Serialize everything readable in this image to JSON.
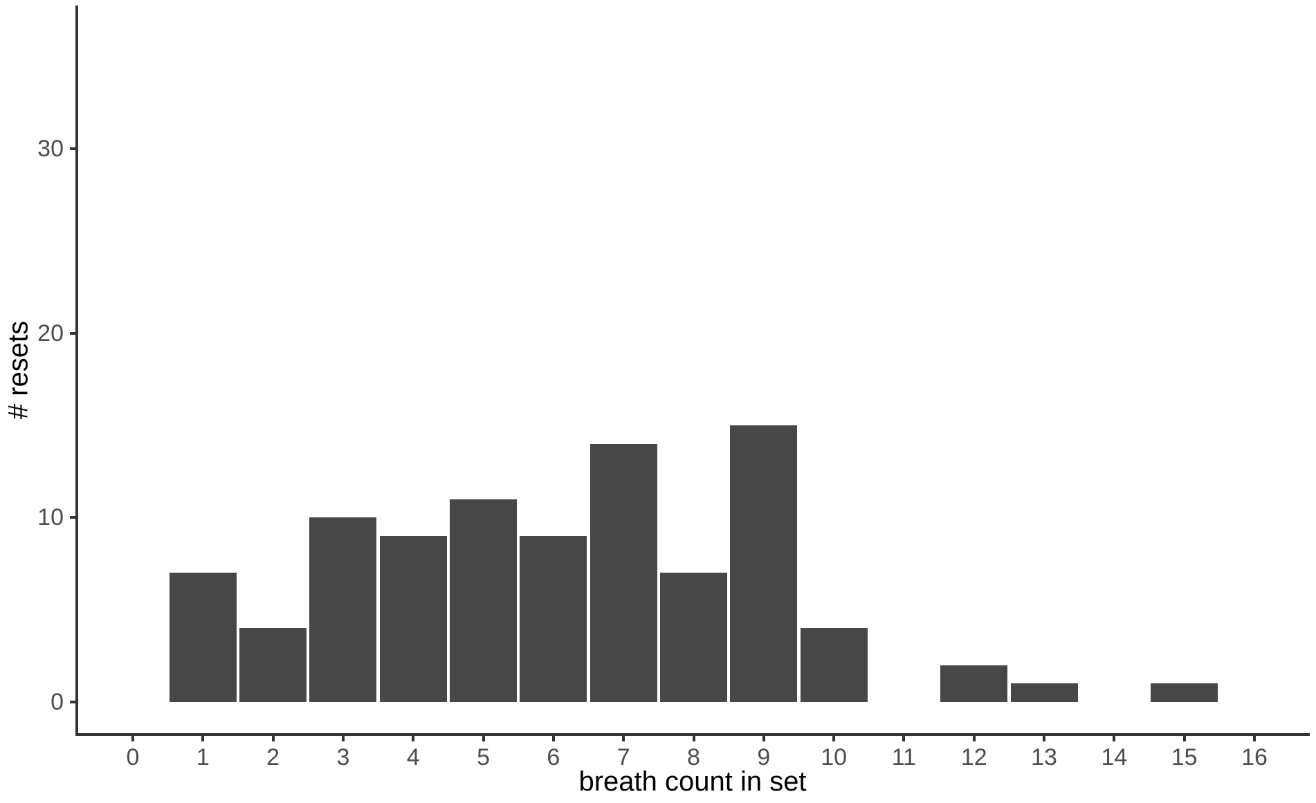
{
  "chart_data": {
    "type": "bar",
    "subtype": "histogram",
    "title": "",
    "xlabel": "breath count in set",
    "ylabel": "# resets",
    "categories": [
      0,
      1,
      2,
      3,
      4,
      5,
      6,
      7,
      8,
      9,
      10,
      11,
      12,
      13,
      14,
      15,
      16
    ],
    "values": [
      0,
      7,
      4,
      10,
      9,
      11,
      9,
      14,
      7,
      15,
      4,
      0,
      2,
      1,
      0,
      1,
      0
    ],
    "xticks": [
      0,
      1,
      2,
      3,
      4,
      5,
      6,
      7,
      8,
      9,
      10,
      11,
      12,
      13,
      14,
      15,
      16
    ],
    "yticks": [
      0,
      10,
      20,
      30
    ],
    "xlim": [
      -0.8,
      16.8
    ],
    "ylim": [
      0,
      37.5
    ],
    "grid": false,
    "legend": false,
    "bar_color": "#474747",
    "axis_color": "#333333",
    "tick_label_color": "#4d4d4d",
    "axis_title_color": "#000000",
    "background_color": "#ffffff"
  }
}
